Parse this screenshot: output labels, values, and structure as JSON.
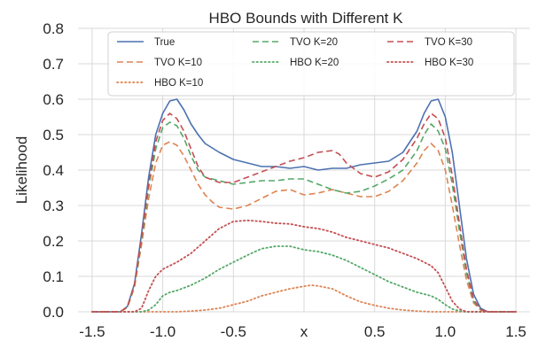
{
  "chart_data": {
    "type": "line",
    "title": "HBO Bounds with Different K",
    "xlabel": "x",
    "ylabel": "Likelihood",
    "xlim": [
      -1.6,
      1.6
    ],
    "ylim": [
      0.0,
      0.8
    ],
    "xticks": [
      "-1.5",
      "-1.0",
      "-0.5",
      "x",
      "0.5",
      "1.0",
      "1.5"
    ],
    "yticks": [
      "0.0",
      "0.1",
      "0.2",
      "0.3",
      "0.4",
      "0.5",
      "0.6",
      "0.7",
      "0.8"
    ],
    "grid": true,
    "legend_position": "top",
    "series": [
      {
        "name": "True",
        "color": "#4c72b0",
        "dash": "solid",
        "points": [
          [
            -1.5,
            0
          ],
          [
            -1.3,
            0
          ],
          [
            -1.25,
            0.015
          ],
          [
            -1.2,
            0.08
          ],
          [
            -1.15,
            0.22
          ],
          [
            -1.1,
            0.38
          ],
          [
            -1.05,
            0.5
          ],
          [
            -1.0,
            0.56
          ],
          [
            -0.95,
            0.595
          ],
          [
            -0.9,
            0.6
          ],
          [
            -0.85,
            0.57
          ],
          [
            -0.8,
            0.53
          ],
          [
            -0.75,
            0.5
          ],
          [
            -0.7,
            0.475
          ],
          [
            -0.6,
            0.45
          ],
          [
            -0.5,
            0.43
          ],
          [
            -0.4,
            0.42
          ],
          [
            -0.3,
            0.41
          ],
          [
            -0.2,
            0.41
          ],
          [
            -0.1,
            0.405
          ],
          [
            0.0,
            0.41
          ],
          [
            0.1,
            0.4
          ],
          [
            0.2,
            0.405
          ],
          [
            0.3,
            0.405
          ],
          [
            0.4,
            0.415
          ],
          [
            0.5,
            0.42
          ],
          [
            0.6,
            0.425
          ],
          [
            0.7,
            0.45
          ],
          [
            0.75,
            0.48
          ],
          [
            0.8,
            0.51
          ],
          [
            0.85,
            0.56
          ],
          [
            0.9,
            0.595
          ],
          [
            0.95,
            0.6
          ],
          [
            1.0,
            0.55
          ],
          [
            1.05,
            0.45
          ],
          [
            1.1,
            0.3
          ],
          [
            1.15,
            0.15
          ],
          [
            1.2,
            0.05
          ],
          [
            1.25,
            0.01
          ],
          [
            1.3,
            0
          ],
          [
            1.5,
            0
          ]
        ]
      },
      {
        "name": "TVO K=10",
        "color": "#dd8452",
        "dash": "dashed",
        "points": [
          [
            -1.5,
            0
          ],
          [
            -1.3,
            0
          ],
          [
            -1.25,
            0.012
          ],
          [
            -1.2,
            0.07
          ],
          [
            -1.15,
            0.19
          ],
          [
            -1.1,
            0.32
          ],
          [
            -1.05,
            0.42
          ],
          [
            -1.0,
            0.47
          ],
          [
            -0.95,
            0.48
          ],
          [
            -0.9,
            0.47
          ],
          [
            -0.85,
            0.44
          ],
          [
            -0.8,
            0.4
          ],
          [
            -0.75,
            0.36
          ],
          [
            -0.7,
            0.33
          ],
          [
            -0.65,
            0.31
          ],
          [
            -0.6,
            0.295
          ],
          [
            -0.5,
            0.29
          ],
          [
            -0.4,
            0.3
          ],
          [
            -0.3,
            0.32
          ],
          [
            -0.2,
            0.34
          ],
          [
            -0.1,
            0.345
          ],
          [
            0.0,
            0.33
          ],
          [
            0.1,
            0.335
          ],
          [
            0.2,
            0.345
          ],
          [
            0.3,
            0.335
          ],
          [
            0.4,
            0.325
          ],
          [
            0.5,
            0.325
          ],
          [
            0.6,
            0.34
          ],
          [
            0.7,
            0.37
          ],
          [
            0.8,
            0.42
          ],
          [
            0.85,
            0.455
          ],
          [
            0.9,
            0.475
          ],
          [
            0.95,
            0.455
          ],
          [
            1.0,
            0.4
          ],
          [
            1.05,
            0.3
          ],
          [
            1.1,
            0.19
          ],
          [
            1.15,
            0.09
          ],
          [
            1.2,
            0.025
          ],
          [
            1.25,
            0.005
          ],
          [
            1.3,
            0
          ],
          [
            1.5,
            0
          ]
        ]
      },
      {
        "name": "HBO K=10",
        "color": "#dd8452",
        "dash": "dotted",
        "points": [
          [
            -1.5,
            0
          ],
          [
            -0.9,
            0
          ],
          [
            -0.8,
            0.002
          ],
          [
            -0.7,
            0.005
          ],
          [
            -0.6,
            0.01
          ],
          [
            -0.5,
            0.02
          ],
          [
            -0.4,
            0.03
          ],
          [
            -0.3,
            0.045
          ],
          [
            -0.2,
            0.055
          ],
          [
            -0.1,
            0.065
          ],
          [
            0.0,
            0.072
          ],
          [
            0.05,
            0.075
          ],
          [
            0.1,
            0.073
          ],
          [
            0.2,
            0.065
          ],
          [
            0.3,
            0.045
          ],
          [
            0.4,
            0.028
          ],
          [
            0.5,
            0.018
          ],
          [
            0.6,
            0.01
          ],
          [
            0.7,
            0.005
          ],
          [
            0.8,
            0.002
          ],
          [
            0.9,
            0
          ],
          [
            1.5,
            0
          ]
        ]
      },
      {
        "name": "TVO K=20",
        "color": "#55a868",
        "dash": "dashed",
        "points": [
          [
            -1.5,
            0
          ],
          [
            -1.3,
            0
          ],
          [
            -1.25,
            0.014
          ],
          [
            -1.2,
            0.075
          ],
          [
            -1.15,
            0.2
          ],
          [
            -1.1,
            0.35
          ],
          [
            -1.05,
            0.46
          ],
          [
            -1.0,
            0.52
          ],
          [
            -0.95,
            0.535
          ],
          [
            -0.9,
            0.525
          ],
          [
            -0.85,
            0.49
          ],
          [
            -0.8,
            0.44
          ],
          [
            -0.75,
            0.4
          ],
          [
            -0.7,
            0.38
          ],
          [
            -0.6,
            0.37
          ],
          [
            -0.5,
            0.36
          ],
          [
            -0.4,
            0.365
          ],
          [
            -0.3,
            0.37
          ],
          [
            -0.2,
            0.37
          ],
          [
            -0.1,
            0.375
          ],
          [
            0.0,
            0.375
          ],
          [
            0.1,
            0.36
          ],
          [
            0.2,
            0.345
          ],
          [
            0.3,
            0.335
          ],
          [
            0.4,
            0.34
          ],
          [
            0.5,
            0.355
          ],
          [
            0.6,
            0.375
          ],
          [
            0.7,
            0.4
          ],
          [
            0.8,
            0.455
          ],
          [
            0.85,
            0.5
          ],
          [
            0.9,
            0.53
          ],
          [
            0.95,
            0.51
          ],
          [
            1.0,
            0.46
          ],
          [
            1.05,
            0.36
          ],
          [
            1.1,
            0.23
          ],
          [
            1.15,
            0.11
          ],
          [
            1.2,
            0.03
          ],
          [
            1.25,
            0.006
          ],
          [
            1.3,
            0
          ],
          [
            1.5,
            0
          ]
        ]
      },
      {
        "name": "HBO K=20",
        "color": "#55a868",
        "dash": "dotted",
        "points": [
          [
            -1.5,
            0
          ],
          [
            -1.15,
            0
          ],
          [
            -1.1,
            0.005
          ],
          [
            -1.05,
            0.02
          ],
          [
            -1.0,
            0.045
          ],
          [
            -0.95,
            0.055
          ],
          [
            -0.9,
            0.06
          ],
          [
            -0.8,
            0.075
          ],
          [
            -0.7,
            0.095
          ],
          [
            -0.6,
            0.12
          ],
          [
            -0.5,
            0.14
          ],
          [
            -0.4,
            0.16
          ],
          [
            -0.3,
            0.178
          ],
          [
            -0.2,
            0.185
          ],
          [
            -0.1,
            0.185
          ],
          [
            0.0,
            0.175
          ],
          [
            0.1,
            0.17
          ],
          [
            0.2,
            0.16
          ],
          [
            0.3,
            0.145
          ],
          [
            0.4,
            0.125
          ],
          [
            0.5,
            0.105
          ],
          [
            0.6,
            0.085
          ],
          [
            0.7,
            0.07
          ],
          [
            0.8,
            0.055
          ],
          [
            0.9,
            0.045
          ],
          [
            0.95,
            0.035
          ],
          [
            1.0,
            0.02
          ],
          [
            1.05,
            0.008
          ],
          [
            1.1,
            0.002
          ],
          [
            1.15,
            0
          ],
          [
            1.5,
            0
          ]
        ]
      },
      {
        "name": "TVO K=30",
        "color": "#c44e52",
        "dash": "dashed",
        "points": [
          [
            -1.5,
            0
          ],
          [
            -1.3,
            0
          ],
          [
            -1.25,
            0.015
          ],
          [
            -1.2,
            0.078
          ],
          [
            -1.15,
            0.21
          ],
          [
            -1.1,
            0.36
          ],
          [
            -1.05,
            0.48
          ],
          [
            -1.0,
            0.54
          ],
          [
            -0.95,
            0.56
          ],
          [
            -0.9,
            0.545
          ],
          [
            -0.85,
            0.51
          ],
          [
            -0.8,
            0.46
          ],
          [
            -0.75,
            0.41
          ],
          [
            -0.7,
            0.38
          ],
          [
            -0.6,
            0.365
          ],
          [
            -0.5,
            0.365
          ],
          [
            -0.4,
            0.38
          ],
          [
            -0.3,
            0.395
          ],
          [
            -0.2,
            0.41
          ],
          [
            -0.1,
            0.425
          ],
          [
            0.0,
            0.435
          ],
          [
            0.1,
            0.45
          ],
          [
            0.2,
            0.455
          ],
          [
            0.25,
            0.445
          ],
          [
            0.3,
            0.42
          ],
          [
            0.4,
            0.39
          ],
          [
            0.5,
            0.38
          ],
          [
            0.6,
            0.395
          ],
          [
            0.7,
            0.43
          ],
          [
            0.8,
            0.49
          ],
          [
            0.85,
            0.53
          ],
          [
            0.9,
            0.56
          ],
          [
            0.95,
            0.545
          ],
          [
            1.0,
            0.49
          ],
          [
            1.05,
            0.385
          ],
          [
            1.1,
            0.25
          ],
          [
            1.15,
            0.12
          ],
          [
            1.2,
            0.035
          ],
          [
            1.25,
            0.007
          ],
          [
            1.3,
            0
          ],
          [
            1.5,
            0
          ]
        ]
      },
      {
        "name": "HBO K=30",
        "color": "#c44e52",
        "dash": "dotted",
        "points": [
          [
            -1.5,
            0
          ],
          [
            -1.2,
            0
          ],
          [
            -1.15,
            0.01
          ],
          [
            -1.1,
            0.06
          ],
          [
            -1.05,
            0.1
          ],
          [
            -1.0,
            0.12
          ],
          [
            -0.95,
            0.13
          ],
          [
            -0.9,
            0.14
          ],
          [
            -0.8,
            0.165
          ],
          [
            -0.7,
            0.2
          ],
          [
            -0.6,
            0.235
          ],
          [
            -0.5,
            0.255
          ],
          [
            -0.4,
            0.258
          ],
          [
            -0.3,
            0.255
          ],
          [
            -0.2,
            0.25
          ],
          [
            -0.1,
            0.248
          ],
          [
            0.0,
            0.24
          ],
          [
            0.1,
            0.235
          ],
          [
            0.2,
            0.225
          ],
          [
            0.3,
            0.21
          ],
          [
            0.4,
            0.2
          ],
          [
            0.5,
            0.19
          ],
          [
            0.6,
            0.18
          ],
          [
            0.7,
            0.165
          ],
          [
            0.8,
            0.15
          ],
          [
            0.9,
            0.13
          ],
          [
            0.95,
            0.11
          ],
          [
            1.0,
            0.07
          ],
          [
            1.05,
            0.03
          ],
          [
            1.1,
            0.008
          ],
          [
            1.15,
            0
          ],
          [
            1.5,
            0
          ]
        ]
      }
    ]
  }
}
